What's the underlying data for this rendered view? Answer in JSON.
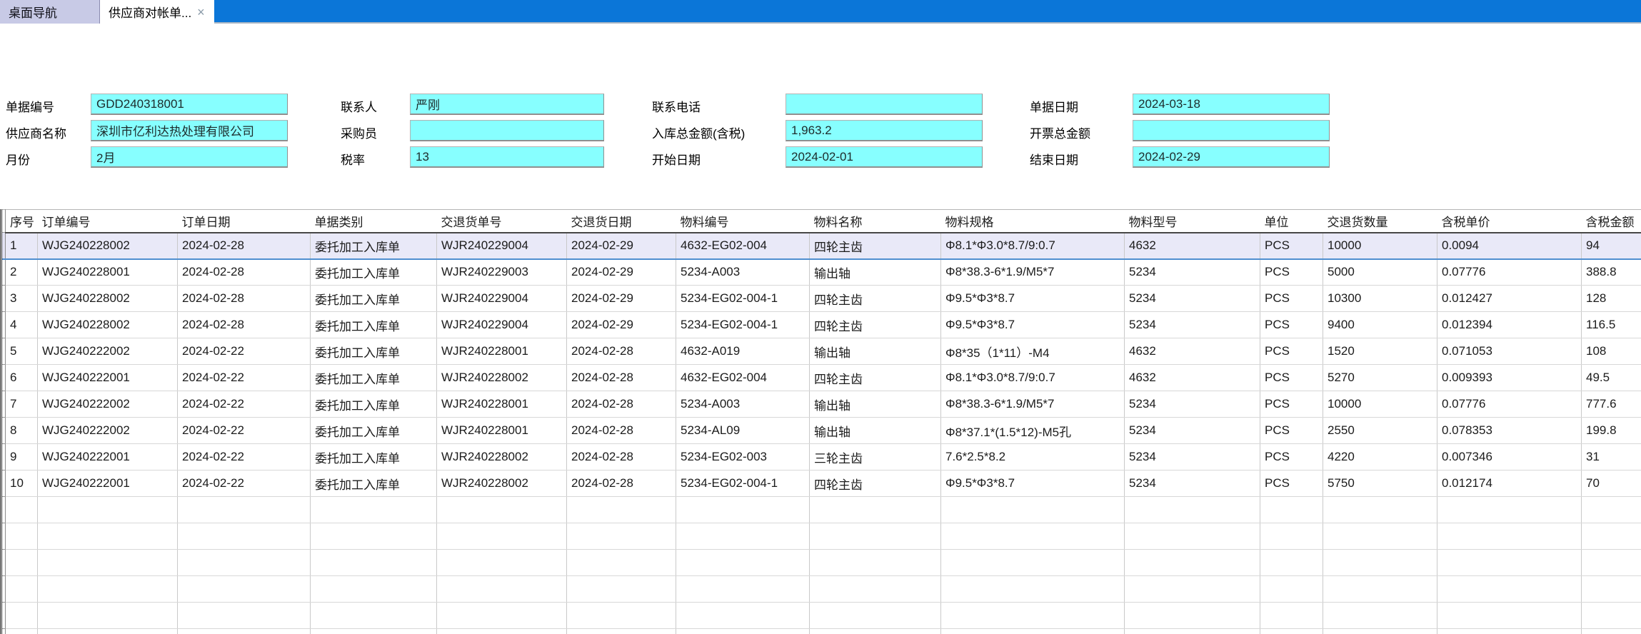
{
  "tabs": [
    {
      "label": "桌面导航",
      "active": false
    },
    {
      "label": "供应商对帐单...",
      "active": true,
      "close_icon": "×"
    }
  ],
  "form": {
    "fields": [
      {
        "label": "单据编号",
        "value": "GDD240318001"
      },
      {
        "label": "联系人",
        "value": "严刚"
      },
      {
        "label": "联系电话",
        "value": ""
      },
      {
        "label": "单据日期",
        "value": "2024-03-18"
      },
      {
        "label": "供应商名称",
        "value": "深圳市亿利达热处理有限公司"
      },
      {
        "label": "采购员",
        "value": ""
      },
      {
        "label": "入库总金额(含税)",
        "value": "1,963.2"
      },
      {
        "label": "开票总金额",
        "value": ""
      },
      {
        "label": "月份",
        "value": "2月"
      },
      {
        "label": "税率",
        "value": "13"
      },
      {
        "label": "开始日期",
        "value": "2024-02-01"
      },
      {
        "label": "结束日期",
        "value": "2024-02-29"
      }
    ]
  },
  "table": {
    "columns": [
      {
        "label": "序号",
        "key": "seq"
      },
      {
        "label": "订单编号",
        "key": "order-no"
      },
      {
        "label": "订单日期",
        "key": "order-date"
      },
      {
        "label": "单据类别",
        "key": "doc-type"
      },
      {
        "label": "交退货单号",
        "key": "delivery-no"
      },
      {
        "label": "交退货日期",
        "key": "delivery-date"
      },
      {
        "label": "物料编号",
        "key": "material-no"
      },
      {
        "label": "物料名称",
        "key": "material-name"
      },
      {
        "label": "物料规格",
        "key": "material-spec"
      },
      {
        "label": "物料型号",
        "key": "material-model"
      },
      {
        "label": "单位",
        "key": "unit"
      },
      {
        "label": "交退货数量",
        "key": "qty"
      },
      {
        "label": "含税单价",
        "key": "unit-price"
      },
      {
        "label": "含税金额",
        "key": "amount"
      }
    ],
    "selected_row_index": 0,
    "rows": [
      [
        "1",
        "WJG240228002",
        "2024-02-28",
        "委托加工入库单",
        "WJR240229004",
        "2024-02-29",
        "4632-EG02-004",
        "四轮主齿",
        "Φ8.1*Φ3.0*8.7/9:0.7",
        "4632",
        "PCS",
        "10000",
        "0.0094",
        "94"
      ],
      [
        "2",
        "WJG240228001",
        "2024-02-28",
        "委托加工入库单",
        "WJR240229003",
        "2024-02-29",
        "5234-A003",
        "输出轴",
        "Φ8*38.3-6*1.9/M5*7",
        "5234",
        "PCS",
        "5000",
        "0.07776",
        "388.8"
      ],
      [
        "3",
        "WJG240228002",
        "2024-02-28",
        "委托加工入库单",
        "WJR240229004",
        "2024-02-29",
        "5234-EG02-004-1",
        "四轮主齿",
        "Φ9.5*Φ3*8.7",
        "5234",
        "PCS",
        "10300",
        "0.012427",
        "128"
      ],
      [
        "4",
        "WJG240228002",
        "2024-02-28",
        "委托加工入库单",
        "WJR240229004",
        "2024-02-29",
        "5234-EG02-004-1",
        "四轮主齿",
        "Φ9.5*Φ3*8.7",
        "5234",
        "PCS",
        "9400",
        "0.012394",
        "116.5"
      ],
      [
        "5",
        "WJG240222002",
        "2024-02-22",
        "委托加工入库单",
        "WJR240228001",
        "2024-02-28",
        "4632-A019",
        "输出轴",
        "Φ8*35（1*11）-M4",
        "4632",
        "PCS",
        "1520",
        "0.071053",
        "108"
      ],
      [
        "6",
        "WJG240222001",
        "2024-02-22",
        "委托加工入库单",
        "WJR240228002",
        "2024-02-28",
        "4632-EG02-004",
        "四轮主齿",
        "Φ8.1*Φ3.0*8.7/9:0.7",
        "4632",
        "PCS",
        "5270",
        "0.009393",
        "49.5"
      ],
      [
        "7",
        "WJG240222002",
        "2024-02-22",
        "委托加工入库单",
        "WJR240228001",
        "2024-02-28",
        "5234-A003",
        "输出轴",
        "Φ8*38.3-6*1.9/M5*7",
        "5234",
        "PCS",
        "10000",
        "0.07776",
        "777.6"
      ],
      [
        "8",
        "WJG240222002",
        "2024-02-22",
        "委托加工入库单",
        "WJR240228001",
        "2024-02-28",
        "5234-AL09",
        "输出轴",
        "Φ8*37.1*(1.5*12)-M5孔",
        "5234",
        "PCS",
        "2550",
        "0.078353",
        "199.8"
      ],
      [
        "9",
        "WJG240222001",
        "2024-02-22",
        "委托加工入库单",
        "WJR240228002",
        "2024-02-28",
        "5234-EG02-003",
        "三轮主齿",
        "7.6*2.5*8.2",
        "5234",
        "PCS",
        "4220",
        "0.007346",
        "31"
      ],
      [
        "10",
        "WJG240222001",
        "2024-02-22",
        "委托加工入库单",
        "WJR240228002",
        "2024-02-28",
        "5234-EG02-004-1",
        "四轮主齿",
        "Φ9.5*Φ3*8.7",
        "5234",
        "PCS",
        "5750",
        "0.012174",
        "70"
      ]
    ],
    "empty_row_count": 6
  }
}
